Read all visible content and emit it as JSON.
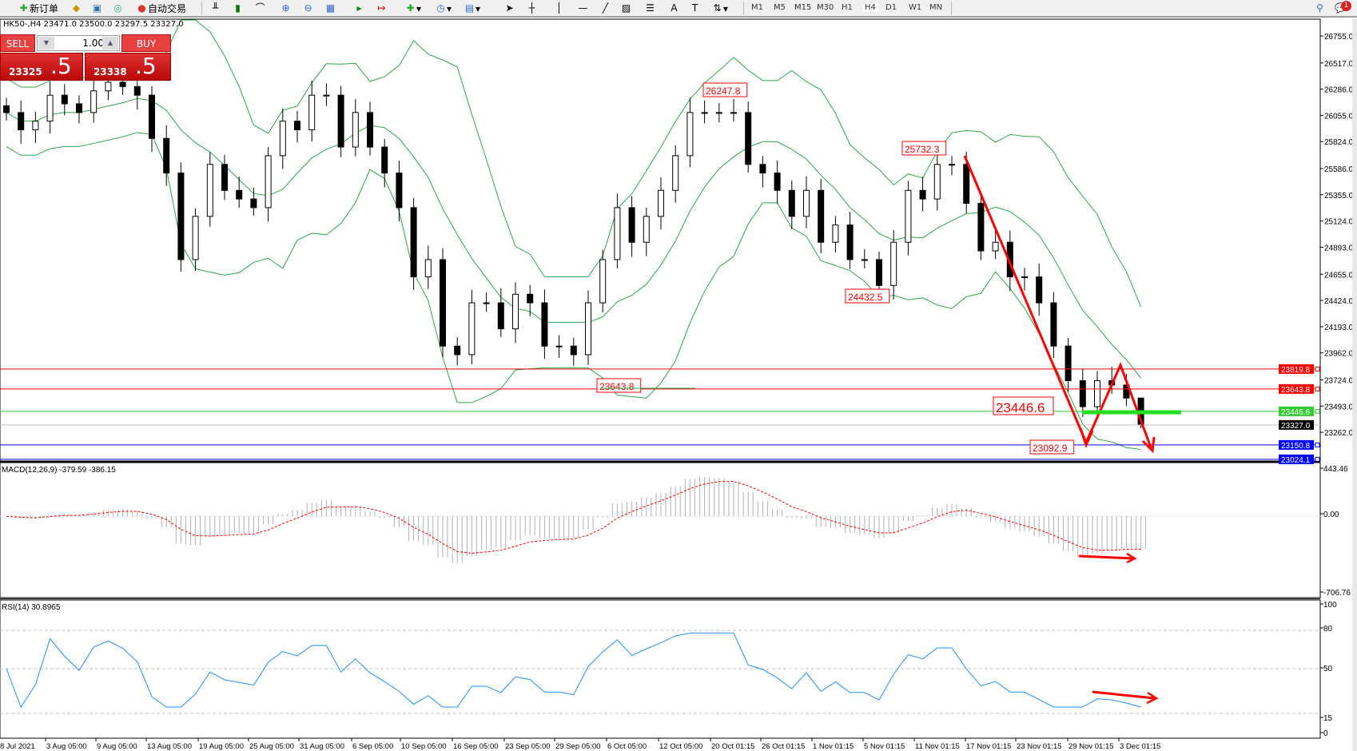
{
  "toolbar": {
    "new_order": "新订单",
    "auto_trading": "自动交易",
    "timeframes": [
      "M1",
      "M5",
      "M15",
      "M30",
      "H1",
      "H4",
      "D1",
      "W1",
      "MN"
    ],
    "active_timeframe": "H4",
    "notification_count": "1"
  },
  "chart_header": "HK50-,H4  23471.0 23500.0 23297.5 23327.0",
  "trade_panel": {
    "sell_label": "SELL",
    "buy_label": "BUY",
    "lot": "1.00",
    "sell_price_main": "23325",
    "sell_price_big": ".5",
    "buy_price_main": "23338",
    "buy_price_big": ".5"
  },
  "colors": {
    "bull": "#ffffff",
    "bear": "#000000",
    "bands": "#2aa84a",
    "annot": "#ff0000",
    "support": "#33cc33",
    "blue_line": "#0000ff",
    "rsi": "#1e90ff",
    "macd_hist": "#b0b0b0",
    "signal": "#ff0000"
  },
  "chart_data": {
    "type": "candlestick",
    "symbol": "HK50-",
    "timeframe": "H4",
    "price_ticks": [
      26755.0,
      26517.0,
      26286.0,
      26055.0,
      25824.0,
      25586.0,
      25355.0,
      25124.0,
      24893.0,
      24655.0,
      24424.0,
      24193.0,
      23962.0,
      23724.0,
      23493.0,
      23262.0
    ],
    "closes_approx": [
      26080,
      25928,
      26004,
      26233,
      26157,
      26080,
      26271,
      26347,
      26309,
      26233,
      25852,
      25547,
      24784,
      25165,
      25623,
      25394,
      25318,
      25242,
      25700,
      26004,
      25928,
      26233,
      26233,
      25776,
      26080,
      25776,
      25547,
      25242,
      24632,
      24784,
      24022,
      23946,
      24403,
      24403,
      24174,
      24479,
      24403,
      24022,
      24022,
      23946,
      24403,
      24784,
      25242,
      24937,
      25165,
      25394,
      25700,
      26080,
      26080,
      26080,
      26080,
      25623,
      25547,
      25394,
      25165,
      25394,
      24937,
      25089,
      24784,
      24784,
      24556,
      24937,
      25394,
      25318,
      25623,
      25623,
      25280,
      24861,
      24937,
      24632,
      24632,
      24403,
      24022,
      23717,
      23488,
      23717,
      23679,
      23564,
      23327
    ],
    "last_bar": {
      "open": 23471.0,
      "high": 23500.0,
      "low": 23297.5,
      "close": 23327.0
    },
    "horizontal_lines": [
      {
        "price": "23819.8",
        "color": "#ff0000"
      },
      {
        "price": "23643.8",
        "color": "#ff0000"
      },
      {
        "price": "23446.6",
        "color": "#33cc33"
      },
      {
        "price": "23327.0",
        "color": "#000000",
        "bid": true
      },
      {
        "price": "23150.8",
        "color": "#0000ff"
      },
      {
        "price": "23024.1",
        "color": "#0000ff"
      }
    ],
    "annotations": [
      "26247.8",
      "25732.3",
      "24432.5",
      "23643.8",
      "23446.6",
      "23092.9"
    ],
    "indicators": {
      "bollinger": "Bollinger Bands",
      "macd": {
        "label": "MACD(12,26,9) -379.59 -386.15",
        "ticks": [
          "443.46",
          "0.00",
          "-706.76"
        ],
        "range": [
          -706.76,
          443.46
        ]
      },
      "rsi": {
        "label": "RSI(14) 30.8965",
        "ticks": [
          "100",
          "80",
          "50",
          "15",
          "0"
        ],
        "levels": [
          80,
          50,
          15
        ]
      }
    },
    "x_labels": [
      "8 Jul 2021",
      "3 Aug 05:00",
      "9 Aug 05:00",
      "13 Aug 05:00",
      "19 Aug 05:00",
      "25 Aug 05:00",
      "31 Aug 05:00",
      "6 Sep 05:00",
      "10 Sep 05:00",
      "16 Sep 05:00",
      "23 Sep 05:00",
      "29 Sep 05:00",
      "6 Oct 05:00",
      "12 Oct 05:00",
      "20 Oct 01:15",
      "26 Oct 01:15",
      "1 Nov 01:15",
      "5 Nov 01:15",
      "11 Nov 01:15",
      "17 Nov 01:15",
      "23 Nov 01:15",
      "29 Nov 01:15",
      "3 Dec 01:15"
    ]
  }
}
